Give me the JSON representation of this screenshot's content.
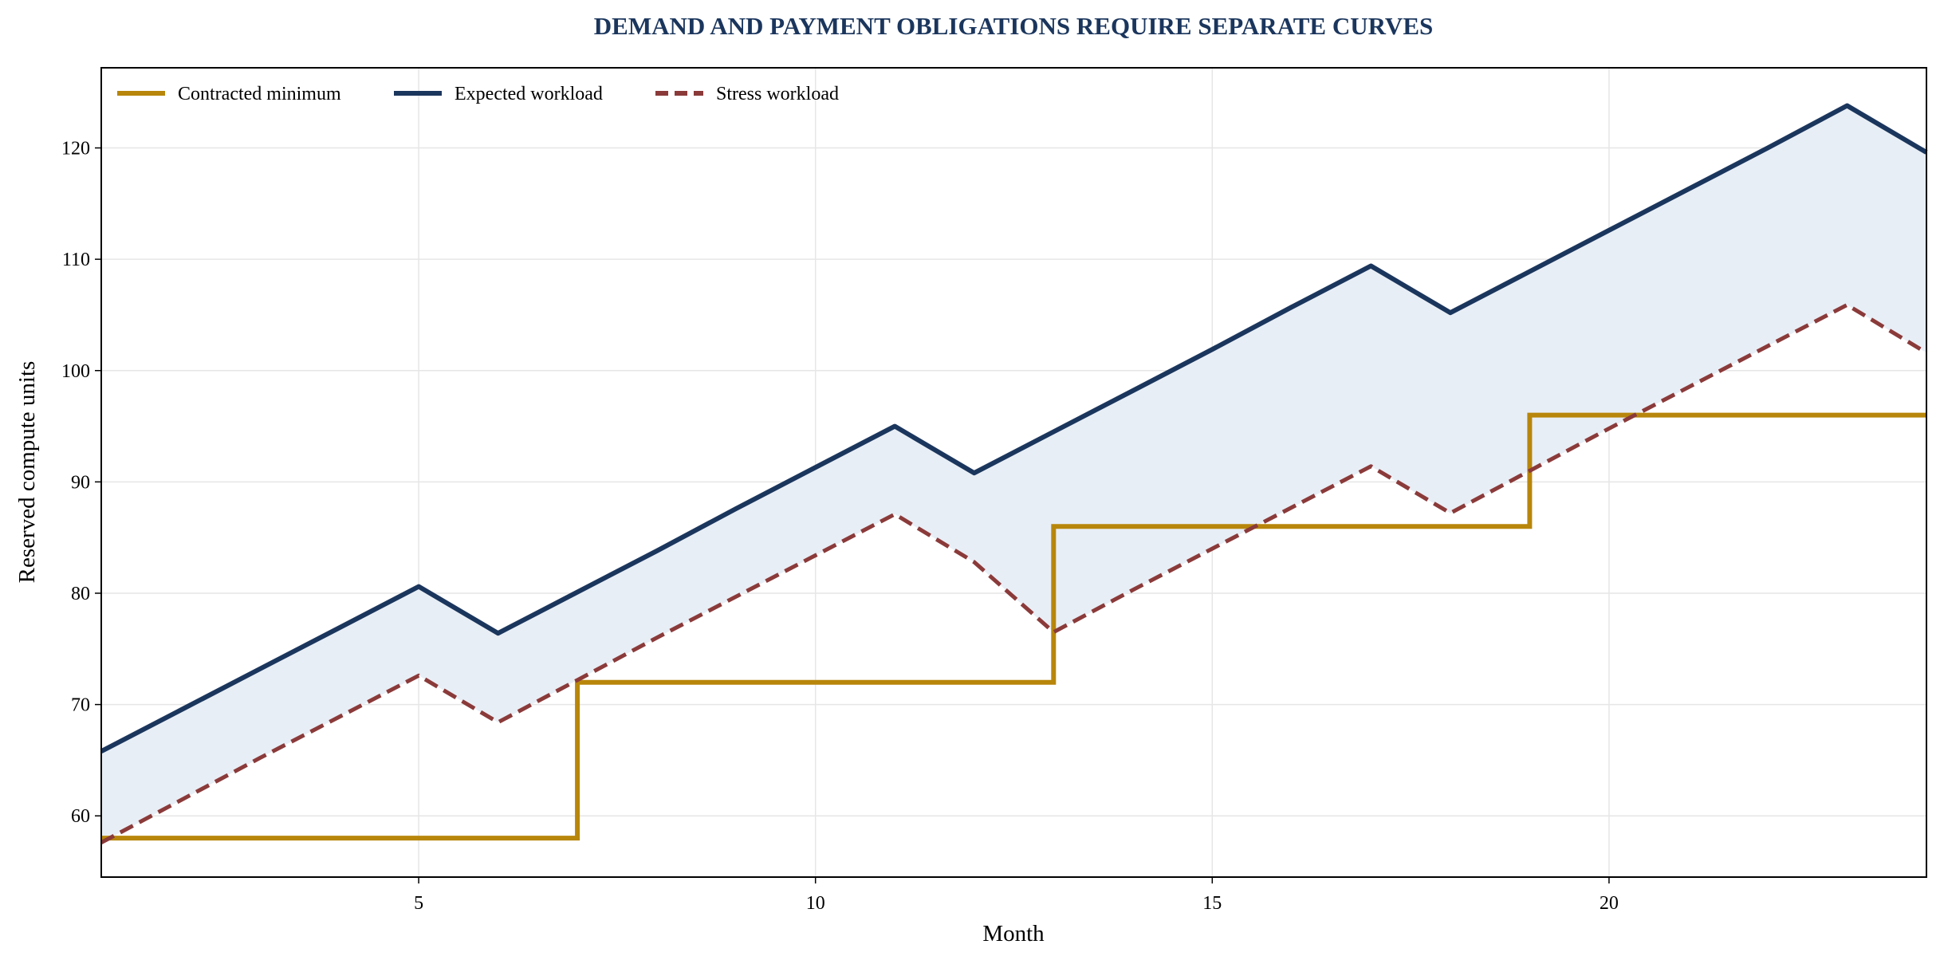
{
  "chart_data": {
    "type": "line",
    "title": "DEMAND AND PAYMENT OBLIGATIONS REQUIRE SEPARATE CURVES",
    "xlabel": "Month",
    "ylabel": "Reserved compute units",
    "xlim": [
      1,
      24
    ],
    "ylim": [
      54.5,
      127.2
    ],
    "x_ticks": [
      5,
      10,
      15,
      20
    ],
    "y_ticks": [
      60,
      70,
      80,
      90,
      100,
      110,
      120
    ],
    "grid": true,
    "legend_position": "top-left",
    "fill_between": {
      "upper": "Expected workload",
      "lower": "Stress workload",
      "color": "#e8eef5"
    },
    "colors": {
      "title": "#1b365d",
      "contracted": "#b8860b",
      "expected": "#1b365d",
      "stress": "#8b3a3a",
      "grid": "#e6e6e6"
    },
    "x": [
      1,
      2,
      3,
      4,
      5,
      6,
      7,
      8,
      9,
      10,
      11,
      12,
      13,
      14,
      15,
      16,
      17,
      18,
      19,
      20,
      21,
      22,
      23,
      24
    ],
    "series": [
      {
        "name": "Contracted minimum",
        "style": "step",
        "values": [
          58,
          58,
          58,
          58,
          58,
          58,
          72,
          72,
          72,
          72,
          72,
          72,
          86,
          86,
          86,
          86,
          86,
          86,
          96,
          96,
          96,
          96,
          96,
          96
        ]
      },
      {
        "name": "Expected workload",
        "style": "solid",
        "values": [
          65.8,
          69.5,
          73.2,
          76.9,
          80.6,
          76.4,
          80.1,
          83.8,
          87.6,
          91.3,
          95.0,
          90.8,
          94.5,
          98.2,
          101.9,
          105.7,
          109.4,
          105.2,
          108.9,
          112.6,
          116.3,
          120.0,
          123.8,
          119.6
        ]
      },
      {
        "name": "Stress workload",
        "style": "dashed",
        "values": [
          57.6,
          61.4,
          65.2,
          68.9,
          72.6,
          68.4,
          72.2,
          76.0,
          79.7,
          83.4,
          87.1,
          82.8,
          76.5,
          80.3,
          84.0,
          87.7,
          91.4,
          87.2,
          91.0,
          94.8,
          98.5,
          102.2,
          105.9,
          101.6
        ]
      }
    ]
  }
}
